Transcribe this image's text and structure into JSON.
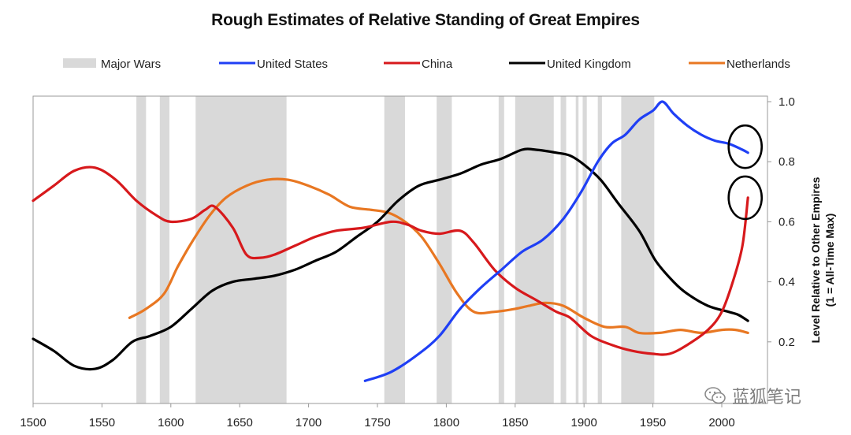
{
  "chart_data": {
    "type": "line",
    "title": "Rough Estimates of Relative Standing of Great Empires",
    "xlabel": "",
    "ylabel": "Level Relative to Other Empires",
    "ylabel_sub": "(1 = All-Time Max)",
    "xlim": [
      1500,
      2030
    ],
    "ylim": [
      0.0,
      1.0
    ],
    "x_ticks": [
      "1500",
      "1550",
      "1600",
      "1650",
      "1700",
      "1750",
      "1800",
      "1850",
      "1900",
      "1950",
      "2000"
    ],
    "y_ticks": [
      "1.0",
      "0.8",
      "0.6",
      "0.4",
      "0.2"
    ],
    "y_axis_position": "right",
    "legend": {
      "position": "top",
      "entries": [
        {
          "name": "Major Wars",
          "type": "band",
          "color": "#d9d9d9"
        },
        {
          "name": "United States",
          "type": "line",
          "color": "#1f3ff5"
        },
        {
          "name": "China",
          "type": "line",
          "color": "#d7191c"
        },
        {
          "name": "United Kingdom",
          "type": "line",
          "color": "#000000"
        },
        {
          "name": "Netherlands",
          "type": "line",
          "color": "#e87722"
        }
      ]
    },
    "major_wars": [
      [
        1575,
        1582
      ],
      [
        1592,
        1599
      ],
      [
        1618,
        1684
      ],
      [
        1755,
        1770
      ],
      [
        1793,
        1804
      ],
      [
        1838,
        1842
      ],
      [
        1850,
        1878
      ],
      [
        1883,
        1887
      ],
      [
        1894,
        1896
      ],
      [
        1899,
        1902
      ],
      [
        1910,
        1913
      ],
      [
        1927,
        1951
      ]
    ],
    "series": [
      {
        "name": "United States",
        "color": "#1f3ff5",
        "points": [
          [
            1741,
            0.07
          ],
          [
            1760,
            0.1
          ],
          [
            1780,
            0.16
          ],
          [
            1795,
            0.22
          ],
          [
            1810,
            0.31
          ],
          [
            1825,
            0.38
          ],
          [
            1840,
            0.44
          ],
          [
            1855,
            0.5
          ],
          [
            1870,
            0.54
          ],
          [
            1885,
            0.61
          ],
          [
            1898,
            0.7
          ],
          [
            1910,
            0.8
          ],
          [
            1920,
            0.86
          ],
          [
            1930,
            0.89
          ],
          [
            1940,
            0.94
          ],
          [
            1950,
            0.97
          ],
          [
            1957,
            1.0
          ],
          [
            1965,
            0.96
          ],
          [
            1975,
            0.92
          ],
          [
            1985,
            0.89
          ],
          [
            1995,
            0.87
          ],
          [
            2005,
            0.86
          ],
          [
            2015,
            0.84
          ],
          [
            2019,
            0.83
          ]
        ]
      },
      {
        "name": "China",
        "color": "#d7191c",
        "points": [
          [
            1500,
            0.67
          ],
          [
            1515,
            0.72
          ],
          [
            1530,
            0.77
          ],
          [
            1545,
            0.78
          ],
          [
            1560,
            0.74
          ],
          [
            1575,
            0.67
          ],
          [
            1590,
            0.62
          ],
          [
            1600,
            0.6
          ],
          [
            1615,
            0.61
          ],
          [
            1625,
            0.64
          ],
          [
            1632,
            0.65
          ],
          [
            1645,
            0.58
          ],
          [
            1655,
            0.49
          ],
          [
            1665,
            0.48
          ],
          [
            1675,
            0.49
          ],
          [
            1690,
            0.52
          ],
          [
            1705,
            0.55
          ],
          [
            1720,
            0.57
          ],
          [
            1740,
            0.58
          ],
          [
            1760,
            0.6
          ],
          [
            1772,
            0.59
          ],
          [
            1782,
            0.57
          ],
          [
            1795,
            0.56
          ],
          [
            1810,
            0.57
          ],
          [
            1820,
            0.53
          ],
          [
            1835,
            0.44
          ],
          [
            1850,
            0.38
          ],
          [
            1865,
            0.34
          ],
          [
            1880,
            0.3
          ],
          [
            1890,
            0.28
          ],
          [
            1905,
            0.22
          ],
          [
            1920,
            0.19
          ],
          [
            1935,
            0.17
          ],
          [
            1950,
            0.16
          ],
          [
            1962,
            0.16
          ],
          [
            1975,
            0.19
          ],
          [
            1990,
            0.24
          ],
          [
            2000,
            0.3
          ],
          [
            2008,
            0.4
          ],
          [
            2015,
            0.52
          ],
          [
            2019,
            0.68
          ]
        ]
      },
      {
        "name": "United Kingdom",
        "color": "#000000",
        "points": [
          [
            1500,
            0.21
          ],
          [
            1515,
            0.17
          ],
          [
            1530,
            0.12
          ],
          [
            1545,
            0.11
          ],
          [
            1558,
            0.14
          ],
          [
            1572,
            0.2
          ],
          [
            1585,
            0.22
          ],
          [
            1600,
            0.25
          ],
          [
            1615,
            0.31
          ],
          [
            1630,
            0.37
          ],
          [
            1645,
            0.4
          ],
          [
            1660,
            0.41
          ],
          [
            1675,
            0.42
          ],
          [
            1690,
            0.44
          ],
          [
            1705,
            0.47
          ],
          [
            1720,
            0.5
          ],
          [
            1735,
            0.55
          ],
          [
            1750,
            0.6
          ],
          [
            1765,
            0.67
          ],
          [
            1780,
            0.72
          ],
          [
            1795,
            0.74
          ],
          [
            1810,
            0.76
          ],
          [
            1825,
            0.79
          ],
          [
            1840,
            0.81
          ],
          [
            1855,
            0.84
          ],
          [
            1865,
            0.84
          ],
          [
            1880,
            0.83
          ],
          [
            1890,
            0.82
          ],
          [
            1900,
            0.79
          ],
          [
            1912,
            0.74
          ],
          [
            1925,
            0.66
          ],
          [
            1940,
            0.57
          ],
          [
            1952,
            0.47
          ],
          [
            1965,
            0.4
          ],
          [
            1975,
            0.36
          ],
          [
            1990,
            0.32
          ],
          [
            2005,
            0.3
          ],
          [
            2012,
            0.29
          ],
          [
            2019,
            0.27
          ]
        ]
      },
      {
        "name": "Netherlands",
        "color": "#e87722",
        "points": [
          [
            1570,
            0.28
          ],
          [
            1582,
            0.31
          ],
          [
            1595,
            0.36
          ],
          [
            1605,
            0.45
          ],
          [
            1615,
            0.53
          ],
          [
            1628,
            0.62
          ],
          [
            1640,
            0.68
          ],
          [
            1655,
            0.72
          ],
          [
            1670,
            0.74
          ],
          [
            1685,
            0.74
          ],
          [
            1700,
            0.72
          ],
          [
            1715,
            0.69
          ],
          [
            1730,
            0.65
          ],
          [
            1745,
            0.64
          ],
          [
            1758,
            0.63
          ],
          [
            1770,
            0.6
          ],
          [
            1782,
            0.55
          ],
          [
            1795,
            0.46
          ],
          [
            1808,
            0.36
          ],
          [
            1820,
            0.3
          ],
          [
            1835,
            0.3
          ],
          [
            1850,
            0.31
          ],
          [
            1860,
            0.32
          ],
          [
            1872,
            0.33
          ],
          [
            1885,
            0.32
          ],
          [
            1900,
            0.28
          ],
          [
            1915,
            0.25
          ],
          [
            1930,
            0.25
          ],
          [
            1940,
            0.23
          ],
          [
            1955,
            0.23
          ],
          [
            1970,
            0.24
          ],
          [
            1985,
            0.23
          ],
          [
            2000,
            0.24
          ],
          [
            2010,
            0.24
          ],
          [
            2019,
            0.23
          ]
        ]
      }
    ],
    "annotations": [
      {
        "type": "ellipse",
        "target": "United States",
        "at": [
          2017,
          0.85
        ]
      },
      {
        "type": "ellipse",
        "target": "China",
        "at": [
          2017,
          0.68
        ]
      }
    ]
  },
  "watermark": {
    "text": "蓝狐笔记",
    "icon": "wechat-icon"
  }
}
